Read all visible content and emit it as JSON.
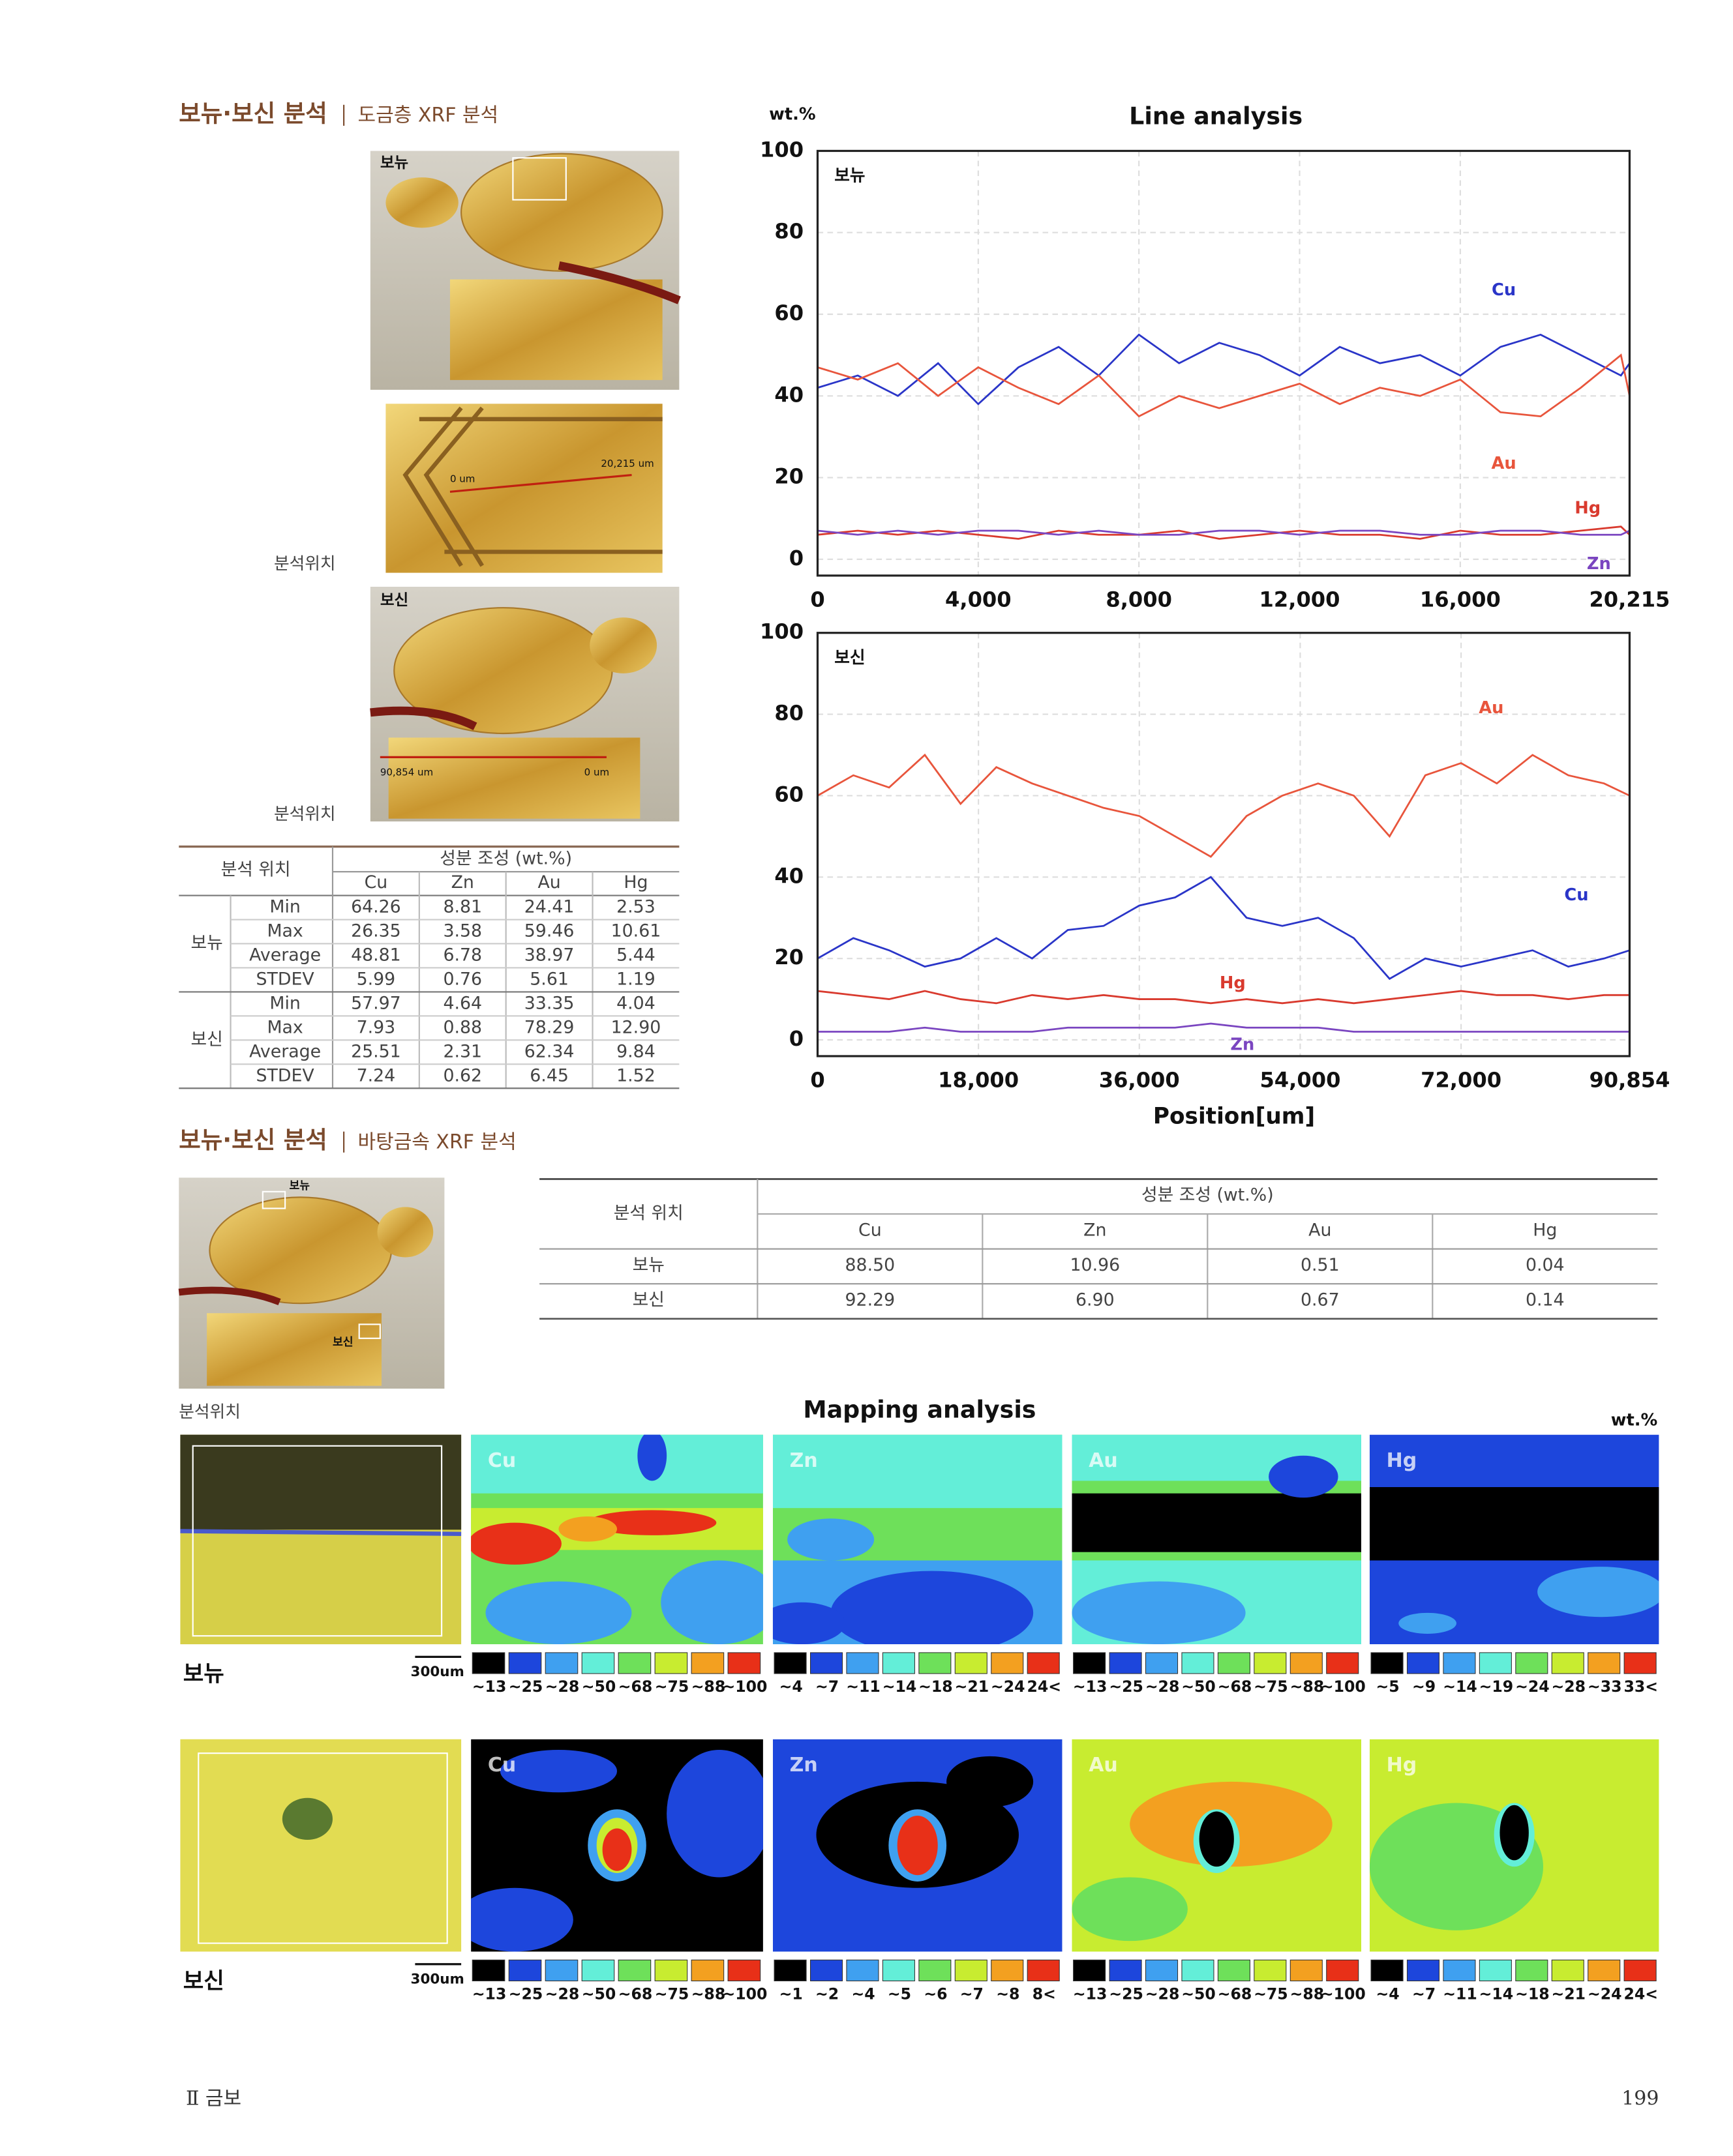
{
  "section1": {
    "title": "보뉴·보신 분석",
    "subtitle": "도금층 XRF 분석"
  },
  "photos": {
    "label_bonyu": "보뉴",
    "label_bosin": "보신",
    "location_1": "분석위치",
    "location_2": "분석위치",
    "scale_start_1": "0 um",
    "scale_end_1": "20,215 um",
    "scale_start_2": "90,854 um",
    "scale_end_2": "0 um"
  },
  "table1": {
    "location_header": "분석 위치",
    "composition_header": "성분 조성 (wt.%)",
    "columns": [
      "Cu",
      "Zn",
      "Au",
      "Hg"
    ],
    "groups": [
      {
        "name": "보뉴",
        "rows": [
          {
            "stat": "Min",
            "values": [
              "64.26",
              "8.81",
              "24.41",
              "2.53"
            ]
          },
          {
            "stat": "Max",
            "values": [
              "26.35",
              "3.58",
              "59.46",
              "10.61"
            ]
          },
          {
            "stat": "Average",
            "values": [
              "48.81",
              "6.78",
              "38.97",
              "5.44"
            ]
          },
          {
            "stat": "STDEV",
            "values": [
              "5.99",
              "0.76",
              "5.61",
              "1.19"
            ]
          }
        ]
      },
      {
        "name": "보신",
        "rows": [
          {
            "stat": "Min",
            "values": [
              "57.97",
              "4.64",
              "33.35",
              "4.04"
            ]
          },
          {
            "stat": "Max",
            "values": [
              "7.93",
              "0.88",
              "78.29",
              "12.90"
            ]
          },
          {
            "stat": "Average",
            "values": [
              "25.51",
              "2.31",
              "62.34",
              "9.84"
            ]
          },
          {
            "stat": "STDEV",
            "values": [
              "7.24",
              "0.62",
              "6.45",
              "1.52"
            ]
          }
        ]
      }
    ]
  },
  "chart_data": [
    {
      "type": "line",
      "title": "Line analysis",
      "y_unit": "wt.%",
      "label": "보뉴",
      "x": [
        0,
        1000,
        2000,
        3000,
        4000,
        5000,
        6000,
        7000,
        8000,
        9000,
        10000,
        11000,
        12000,
        13000,
        14000,
        15000,
        16000,
        17000,
        18000,
        19000,
        20000,
        20215
      ],
      "xlim": [
        0,
        20215
      ],
      "xticks": [
        0,
        {
          "value": 4000,
          "label": "4,000"
        },
        {
          "value": 8000,
          "label": "8,000"
        },
        {
          "value": 12000,
          "label": "12,000"
        },
        {
          "value": 16000,
          "label": "16,000"
        },
        {
          "value": 20215,
          "label": "20,215"
        }
      ],
      "ylim": [
        -4,
        100
      ],
      "yticks": [
        0,
        20,
        40,
        60,
        80,
        100
      ],
      "grid": true,
      "series": [
        {
          "name": "Cu",
          "color": "#2a35c8",
          "values": [
            42,
            45,
            40,
            48,
            38,
            47,
            52,
            45,
            55,
            48,
            53,
            50,
            45,
            52,
            48,
            50,
            45,
            52,
            55,
            50,
            45,
            48
          ]
        },
        {
          "name": "Au",
          "color": "#e8553c",
          "values": [
            47,
            44,
            48,
            40,
            47,
            42,
            38,
            45,
            35,
            40,
            37,
            40,
            43,
            38,
            42,
            40,
            44,
            36,
            35,
            42,
            50,
            40
          ]
        },
        {
          "name": "Hg",
          "color": "#d93a2e",
          "values": [
            6,
            7,
            6,
            7,
            6,
            5,
            7,
            6,
            6,
            7,
            5,
            6,
            7,
            6,
            6,
            5,
            7,
            6,
            6,
            7,
            8,
            6
          ]
        },
        {
          "name": "Zn",
          "color": "#7a45c0",
          "values": [
            7,
            6,
            7,
            6,
            7,
            7,
            6,
            7,
            6,
            6,
            7,
            7,
            6,
            7,
            7,
            6,
            6,
            7,
            7,
            6,
            6,
            7
          ]
        }
      ]
    },
    {
      "type": "line",
      "label": "보신",
      "x_label": "Position[um]",
      "x": [
        0,
        4000,
        8000,
        12000,
        16000,
        20000,
        24000,
        28000,
        32000,
        36000,
        40000,
        44000,
        48000,
        52000,
        56000,
        60000,
        64000,
        68000,
        72000,
        76000,
        80000,
        84000,
        88000,
        90854
      ],
      "xlim": [
        0,
        90854
      ],
      "xticks": [
        0,
        {
          "value": 18000,
          "label": "18,000"
        },
        {
          "value": 36000,
          "label": "36,000"
        },
        {
          "value": 54000,
          "label": "54,000"
        },
        {
          "value": 72000,
          "label": "72,000"
        },
        {
          "value": 90854,
          "label": "90,854"
        }
      ],
      "ylim": [
        -4,
        100
      ],
      "yticks": [
        0,
        20,
        40,
        60,
        80,
        100
      ],
      "grid": true,
      "series": [
        {
          "name": "Au",
          "color": "#e8553c",
          "values": [
            60,
            65,
            62,
            70,
            58,
            67,
            63,
            60,
            57,
            55,
            50,
            45,
            55,
            60,
            63,
            60,
            50,
            65,
            68,
            63,
            70,
            65,
            63,
            60
          ]
        },
        {
          "name": "Cu",
          "color": "#2a35c8",
          "values": [
            20,
            25,
            22,
            18,
            20,
            25,
            20,
            27,
            28,
            33,
            35,
            40,
            30,
            28,
            30,
            25,
            15,
            20,
            18,
            20,
            22,
            18,
            20,
            22
          ]
        },
        {
          "name": "Hg",
          "color": "#d93a2e",
          "values": [
            12,
            11,
            10,
            12,
            10,
            9,
            11,
            10,
            11,
            10,
            10,
            9,
            10,
            9,
            10,
            9,
            10,
            11,
            12,
            11,
            11,
            10,
            11,
            11
          ]
        },
        {
          "name": "Zn",
          "color": "#7a45c0",
          "values": [
            2,
            2,
            2,
            3,
            2,
            2,
            2,
            3,
            3,
            3,
            3,
            4,
            3,
            3,
            3,
            2,
            2,
            2,
            2,
            2,
            2,
            2,
            2,
            2
          ]
        }
      ]
    }
  ],
  "section2": {
    "title": "보뉴·보신 분석",
    "subtitle": "바탕금속 XRF 분석",
    "photo_label_bonyu": "보뉴",
    "photo_label_bosin": "보신",
    "location": "분석위치"
  },
  "table2": {
    "location_header": "분석 위치",
    "composition_header": "성분 조성 (wt.%)",
    "columns": [
      "Cu",
      "Zn",
      "Au",
      "Hg"
    ],
    "rows": [
      {
        "name": "보뉴",
        "values": [
          "88.50",
          "10.96",
          "0.51",
          "0.04"
        ]
      },
      {
        "name": "보신",
        "values": [
          "92.29",
          "6.90",
          "0.67",
          "0.14"
        ]
      }
    ]
  },
  "mapping": {
    "title": "Mapping analysis",
    "unit": "wt.%",
    "legend_colors": [
      "#000000",
      "#1d46dc",
      "#3fa0f0",
      "#63eed8",
      "#6ee05a",
      "#c8ec30",
      "#f3a020",
      "#e83018"
    ],
    "rows": [
      {
        "name": "보뉴",
        "scale": "300um",
        "maps": [
          {
            "element": "Cu",
            "legend": [
              "~13",
              "~25",
              "~28",
              "~50",
              "~68",
              "~75",
              "~88",
              "~100"
            ]
          },
          {
            "element": "Zn",
            "legend": [
              "~4",
              "~7",
              "~11",
              "~14",
              "~18",
              "~21",
              "~24",
              "24<"
            ]
          },
          {
            "element": "Au",
            "legend": [
              "~13",
              "~25",
              "~28",
              "~50",
              "~68",
              "~75",
              "~88",
              "~100"
            ]
          },
          {
            "element": "Hg",
            "legend": [
              "~5",
              "~9",
              "~14",
              "~19",
              "~24",
              "~28",
              "~33",
              "33<"
            ]
          }
        ]
      },
      {
        "name": "보신",
        "scale": "300um",
        "maps": [
          {
            "element": "Cu",
            "legend": [
              "~13",
              "~25",
              "~28",
              "~50",
              "~68",
              "~75",
              "~88",
              "~100"
            ]
          },
          {
            "element": "Zn",
            "legend": [
              "~1",
              "~2",
              "~4",
              "~5",
              "~6",
              "~7",
              "~8",
              "8<"
            ]
          },
          {
            "element": "Au",
            "legend": [
              "~13",
              "~25",
              "~28",
              "~50",
              "~68",
              "~75",
              "~88",
              "~100"
            ]
          },
          {
            "element": "Hg",
            "legend": [
              "~4",
              "~7",
              "~11",
              "~14",
              "~18",
              "~21",
              "~24",
              "24<"
            ]
          }
        ]
      }
    ]
  },
  "footer": {
    "chapter": "Ⅱ 금보",
    "page": "199"
  }
}
